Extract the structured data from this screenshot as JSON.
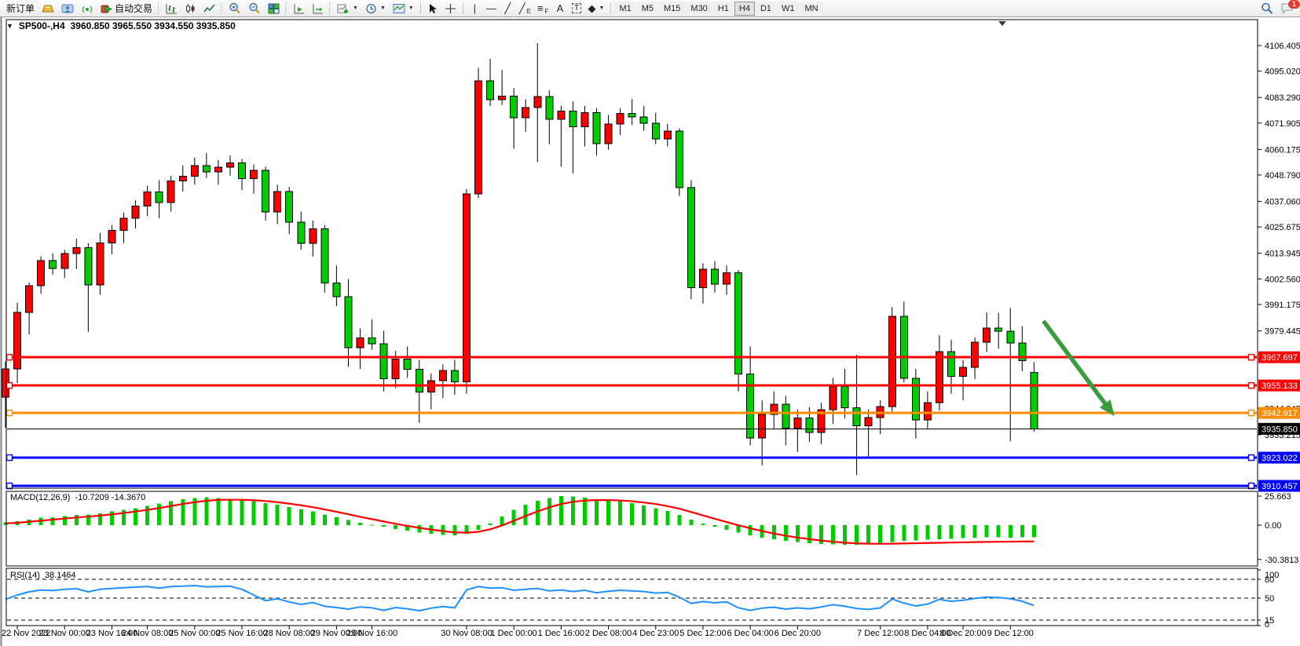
{
  "toolbar": {
    "new_order_label": "新订单",
    "autotrading_label": "自动交易",
    "chat_badge": "1",
    "tools": [
      {
        "name": "vertical-line-tool",
        "glyph": "|",
        "sub": ""
      },
      {
        "name": "horizontal-line-tool",
        "glyph": "—",
        "sub": ""
      },
      {
        "name": "trendline-tool",
        "glyph": "╱",
        "sub": ""
      },
      {
        "name": "equidistant-channel-tool",
        "glyph": "╱",
        "sub": "E"
      },
      {
        "name": "fibonacci-tool",
        "glyph": "≡",
        "sub": "F"
      },
      {
        "name": "text-tool",
        "glyph": "A",
        "sub": ""
      },
      {
        "name": "text-label-tool",
        "glyph": "T",
        "sub": "",
        "boxed": true
      },
      {
        "name": "shapes-tool",
        "glyph": "◆",
        "sub": "",
        "dropdown": true
      }
    ],
    "timeframes": [
      "M1",
      "M5",
      "M15",
      "M30",
      "H1",
      "H4",
      "D1",
      "W1",
      "MN"
    ],
    "active_timeframe": "H4"
  },
  "chart": {
    "title_marker": "▼",
    "title": "SP500-,H4",
    "ohlc_text": "3960.850 3965.550 3934.550 3935.850"
  },
  "chart_data": [
    {
      "type": "candlestick",
      "symbol": "SP500-",
      "timeframe": "H4",
      "bull_color": "#FF0000",
      "bear_color": "#00CC00",
      "ohlc": [
        [
          3950.0,
          3966.0,
          3936.3,
          3962.5
        ],
        [
          3962.5,
          3992.0,
          3956.2,
          3987.6
        ],
        [
          3987.6,
          4001.0,
          3977.9,
          3999.5
        ],
        [
          3999.5,
          4012.5,
          3996.0,
          4010.7
        ],
        [
          4010.7,
          4013.9,
          4004.5,
          4007.2
        ],
        [
          4007.2,
          4015.5,
          4003.0,
          4013.9
        ],
        [
          4013.9,
          4020.5,
          4007.0,
          4016.5
        ],
        [
          4016.5,
          4018.5,
          3979.0,
          3999.8
        ],
        [
          3999.8,
          4023.0,
          3995.5,
          4018.6
        ],
        [
          4018.6,
          4026.5,
          4013.5,
          4024.2
        ],
        [
          4024.2,
          4032.0,
          4018.5,
          4029.5
        ],
        [
          4029.5,
          4037.5,
          4025.0,
          4035.0
        ],
        [
          4035.0,
          4044.0,
          4030.5,
          4041.2
        ],
        [
          4041.2,
          4046.5,
          4029.5,
          4036.5
        ],
        [
          4036.5,
          4048.5,
          4032.5,
          4046.2
        ],
        [
          4046.2,
          4053.0,
          4041.5,
          4048.3
        ],
        [
          4048.3,
          4056.5,
          4044.5,
          4053.0
        ],
        [
          4053.0,
          4058.5,
          4047.5,
          4050.2
        ],
        [
          4050.2,
          4055.5,
          4044.5,
          4052.3
        ],
        [
          4052.3,
          4057.5,
          4048.5,
          4054.2
        ],
        [
          4054.2,
          4056.0,
          4042.0,
          4047.2
        ],
        [
          4047.2,
          4053.5,
          4040.5,
          4050.8
        ],
        [
          4050.8,
          4052.5,
          4028.5,
          4032.3
        ],
        [
          4032.3,
          4044.5,
          4027.0,
          4041.5
        ],
        [
          4041.5,
          4043.5,
          4022.5,
          4027.8
        ],
        [
          4027.8,
          4032.5,
          4015.5,
          4018.3
        ],
        [
          4018.3,
          4028.5,
          4012.5,
          4024.8
        ],
        [
          4024.8,
          4026.5,
          3996.5,
          4000.8
        ],
        [
          4000.8,
          4008.5,
          3990.5,
          3994.6
        ],
        [
          3994.6,
          4002.5,
          3963.5,
          3971.9
        ],
        [
          3971.9,
          3980.5,
          3962.5,
          3976.3
        ],
        [
          3976.3,
          3984.5,
          3971.0,
          3973.6
        ],
        [
          3973.6,
          3979.5,
          3952.5,
          3958.2
        ],
        [
          3958.2,
          3970.5,
          3954.0,
          3966.8
        ],
        [
          3966.8,
          3972.5,
          3958.5,
          3962.3
        ],
        [
          3962.3,
          3966.5,
          3938.5,
          3952.2
        ],
        [
          3952.2,
          3960.5,
          3944.5,
          3957.3
        ],
        [
          3957.3,
          3964.5,
          3949.5,
          3961.8
        ],
        [
          3961.8,
          3966.5,
          3951.0,
          3956.7
        ],
        [
          3956.7,
          4042.5,
          3951.5,
          4040.4
        ],
        [
          4040.4,
          4096.5,
          4038.5,
          4090.7
        ],
        [
          4090.7,
          4100.5,
          4079.5,
          4082.3
        ],
        [
          4082.3,
          4095.5,
          4080.0,
          4083.8
        ],
        [
          4083.8,
          4087.5,
          4060.5,
          4074.2
        ],
        [
          4074.2,
          4082.5,
          4068.0,
          4078.8
        ],
        [
          4078.8,
          4107.5,
          4054.5,
          4083.7
        ],
        [
          4083.7,
          4086.5,
          4062.5,
          4073.6
        ],
        [
          4073.6,
          4079.5,
          4052.5,
          4077.2
        ],
        [
          4077.2,
          4081.5,
          4049.5,
          4070.3
        ],
        [
          4070.3,
          4079.5,
          4061.5,
          4076.6
        ],
        [
          4076.6,
          4078.5,
          4057.5,
          4062.8
        ],
        [
          4062.8,
          4075.5,
          4060.0,
          4071.4
        ],
        [
          4071.4,
          4078.5,
          4066.5,
          4076.2
        ],
        [
          4076.2,
          4082.5,
          4071.0,
          4074.6
        ],
        [
          4074.6,
          4079.5,
          4068.5,
          4071.8
        ],
        [
          4071.8,
          4076.5,
          4062.5,
          4064.8
        ],
        [
          4064.8,
          4071.5,
          4061.5,
          4068.3
        ],
        [
          4068.3,
          4069.5,
          4039.5,
          4043.2
        ],
        [
          4043.2,
          4046.5,
          3993.5,
          3998.7
        ],
        [
          3998.7,
          4009.5,
          3991.5,
          4006.8
        ],
        [
          4006.8,
          4010.5,
          3996.5,
          4000.3
        ],
        [
          4000.3,
          4008.5,
          3995.5,
          4005.2
        ],
        [
          4005.2,
          4006.5,
          3952.5,
          3960.3
        ],
        [
          3960.3,
          3972.5,
          3928.5,
          3931.8
        ],
        [
          3931.8,
          3948.5,
          3919.6,
          3942.3
        ],
        [
          3942.3,
          3952.5,
          3935.5,
          3946.8
        ],
        [
          3946.8,
          3950.5,
          3928.5,
          3936.2
        ],
        [
          3936.2,
          3944.5,
          3925.5,
          3940.6
        ],
        [
          3940.6,
          3945.5,
          3930.0,
          3934.2
        ],
        [
          3934.2,
          3947.5,
          3929.0,
          3944.3
        ],
        [
          3944.3,
          3958.5,
          3938.0,
          3954.7
        ],
        [
          3954.7,
          3962.5,
          3940.5,
          3945.2
        ],
        [
          3945.2,
          3968.8,
          3915.3,
          3937.2
        ],
        [
          3937.2,
          3944.5,
          3922.5,
          3940.8
        ],
        [
          3940.8,
          3948.5,
          3933.5,
          3945.7
        ],
        [
          3945.7,
          3990.0,
          3943.5,
          3985.9
        ],
        [
          3985.9,
          3992.5,
          3956.5,
          3958.3
        ],
        [
          3958.3,
          3962.5,
          3931.5,
          3939.8
        ],
        [
          3939.8,
          3952.5,
          3935.5,
          3947.5
        ],
        [
          3947.5,
          3977.5,
          3944.0,
          3970.2
        ],
        [
          3970.2,
          3975.5,
          3951.5,
          3959.1
        ],
        [
          3959.1,
          3966.5,
          3948.5,
          3963.2
        ],
        [
          3963.2,
          3976.5,
          3958.0,
          3974.4
        ],
        [
          3974.4,
          3987.7,
          3970.0,
          3980.7
        ],
        [
          3980.7,
          3987.5,
          3971.5,
          3979.2
        ],
        [
          3979.2,
          3989.7,
          3930.3,
          3974.1
        ],
        [
          3974.1,
          3981.5,
          3961.5,
          3966.2
        ],
        [
          3960.85,
          3965.55,
          3934.55,
          3935.85
        ]
      ],
      "y_ticks": [
        {
          "label": "4106.405",
          "value": 4106.405
        },
        {
          "label": "4095.020",
          "value": 4095.02
        },
        {
          "label": "4083.290",
          "value": 4083.29
        },
        {
          "label": "4071.905",
          "value": 4071.905
        },
        {
          "label": "4060.175",
          "value": 4060.175
        },
        {
          "label": "4048.790",
          "value": 4048.79
        },
        {
          "label": "4037.060",
          "value": 4037.06
        },
        {
          "label": "4025.675",
          "value": 4025.675
        },
        {
          "label": "4013.945",
          "value": 4013.945
        },
        {
          "label": "4002.560",
          "value": 4002.56
        },
        {
          "label": "3991.175",
          "value": 3991.175
        },
        {
          "label": "3979.445",
          "value": 3979.445
        },
        {
          "label": "3944.945",
          "value": 3944.945
        },
        {
          "label": "3933.215",
          "value": 3933.215
        }
      ],
      "hlines": [
        {
          "label": "3967.697",
          "value": 3967.697,
          "color": "#FF0000",
          "width": 3
        },
        {
          "label": "3955.133",
          "value": 3955.133,
          "color": "#FF0000",
          "width": 3
        },
        {
          "label": "3942.917",
          "value": 3942.917,
          "color": "#FF8C00",
          "width": 3
        },
        {
          "label": "3923.022",
          "value": 3923.022,
          "color": "#0000FF",
          "width": 3
        },
        {
          "label": "3910.457",
          "value": 3910.457,
          "color": "#0000FF",
          "width": 3
        }
      ],
      "bid_line": {
        "label": "3935.850",
        "value": 3935.85,
        "color": "#000000"
      },
      "time_labels": [
        {
          "label": "22 Nov 2022",
          "index": 1
        },
        {
          "label": "23 Nov 00:00",
          "index": 5
        },
        {
          "label": "23 Nov 16:00",
          "index": 9
        },
        {
          "label": "24 Nov 08:00",
          "index": 12
        },
        {
          "label": "25 Nov 00:00",
          "index": 16
        },
        {
          "label": "25 Nov 16:00",
          "index": 20
        },
        {
          "label": "28 Nov 08:00",
          "index": 24
        },
        {
          "label": "29 Nov 00:00",
          "index": 28
        },
        {
          "label": "29 Nov 16:00",
          "index": 31
        },
        {
          "label": "30 Nov 08:00",
          "index": 39
        },
        {
          "label": "1 Dec 00:00",
          "index": 43
        },
        {
          "label": "1 Dec 16:00",
          "index": 47
        },
        {
          "label": "2 Dec 08:00",
          "index": 51
        },
        {
          "label": "4 Dec 23:00",
          "index": 55
        },
        {
          "label": "5 Dec 12:00",
          "index": 59
        },
        {
          "label": "6 Dec 04:00",
          "index": 63
        },
        {
          "label": "6 Dec 20:00",
          "index": 67
        },
        {
          "label": "7 Dec 12:00",
          "index": 74
        },
        {
          "label": "8 Dec 04:00",
          "index": 78
        },
        {
          "label": "8 Dec 20:00",
          "index": 81
        },
        {
          "label": "9 Dec 12:00",
          "index": 85
        }
      ],
      "annotation_arrow": {
        "from_index": 87.8,
        "from_price": 3983.8,
        "to_index": 93.8,
        "to_price": 3941.5,
        "color": "#3C9C3C"
      }
    },
    {
      "type": "macd",
      "label": "MACD(12,26,9)",
      "current_text": "-10.7209 -14.3670",
      "histogram_color": "#00CC00",
      "signal_color": "#FF0000",
      "y_ticks": [
        {
          "label": "25.663",
          "value": 25.663
        },
        {
          "label": "0.00",
          "value": 0
        },
        {
          "label": "-30.3813",
          "value": -30.3813
        }
      ],
      "histogram": [
        2.5,
        3.5,
        5,
        6.5,
        7,
        8,
        9,
        9.5,
        10.5,
        12,
        13.5,
        15,
        17,
        19,
        21,
        23,
        24,
        24.5,
        24,
        23,
        22,
        21,
        19.5,
        18,
        16,
        14,
        12,
        9.5,
        7,
        4.5,
        2,
        0.5,
        -1.5,
        -3.5,
        -5,
        -6.5,
        -7.5,
        -8.5,
        -9,
        -7.5,
        -4,
        1.5,
        7.5,
        13.5,
        18,
        21.5,
        24,
        25.66,
        25.2,
        24.2,
        23,
        22,
        21,
        19.5,
        17.5,
        15,
        12.5,
        9,
        5,
        1.5,
        -1.5,
        -4,
        -6.5,
        -9,
        -11,
        -12.5,
        -13.8,
        -15,
        -15.8,
        -16.5,
        -17,
        -17.3,
        -17.5,
        -17,
        -16,
        -14.8,
        -14,
        -13.5,
        -13,
        -12.5,
        -12,
        -11.6,
        -11.2,
        -10.9,
        -10.8,
        -11,
        -10.9,
        -10.72
      ],
      "signal": [
        1.5,
        2.1,
        3.0,
        3.9,
        4.8,
        5.8,
        6.7,
        7.6,
        8.4,
        9.5,
        10.7,
        12.0,
        13.5,
        15.1,
        16.9,
        18.7,
        20.3,
        21.5,
        22.3,
        22.5,
        22.4,
        22.0,
        21.3,
        20.3,
        19.0,
        17.5,
        15.8,
        13.9,
        11.8,
        9.6,
        7.3,
        5.3,
        3.2,
        1.2,
        -0.7,
        -2.4,
        -3.9,
        -5.3,
        -6.4,
        -6.7,
        -5.9,
        -3.7,
        -0.3,
        3.8,
        8.1,
        12.1,
        15.7,
        18.7,
        20.6,
        21.7,
        22.1,
        22.1,
        21.8,
        21.1,
        20.0,
        18.7,
        16.8,
        14.5,
        11.6,
        8.6,
        5.6,
        2.7,
        -0.1,
        -2.8,
        -5.2,
        -7.4,
        -9.3,
        -11.0,
        -12.4,
        -13.6,
        -14.7,
        -15.5,
        -16.1,
        -16.4,
        -16.5,
        -16.4,
        -16.2,
        -16.0,
        -15.8,
        -15.6,
        -15.4,
        -15.2,
        -15.0,
        -14.85,
        -14.7,
        -14.6,
        -14.5,
        -14.37
      ]
    },
    {
      "type": "rsi",
      "label": "RSI(14)",
      "current_text": "38.1464",
      "line_color": "#1E90FF",
      "levels": [
        80,
        50,
        15
      ],
      "y_tick_labels": [
        {
          "label": "100",
          "value": 100
        },
        {
          "label": "80",
          "value": 80
        },
        {
          "label": "50",
          "value": 50
        },
        {
          "label": "15",
          "value": 15
        },
        {
          "label": "0",
          "value": 0
        }
      ],
      "values": [
        48,
        55,
        60,
        63,
        62,
        64,
        65,
        60,
        64,
        65.5,
        66.5,
        67.5,
        68.5,
        66,
        68.5,
        69,
        70,
        68,
        68.5,
        69,
        64,
        55,
        46,
        49,
        44,
        40,
        43,
        37,
        35,
        32.5,
        36,
        34.5,
        30.5,
        35,
        33,
        30,
        34,
        36.5,
        34.5,
        63,
        68.5,
        66,
        66.5,
        62.5,
        64,
        65.5,
        61.5,
        63,
        60.5,
        62.5,
        58.5,
        61,
        62.5,
        61.5,
        60.5,
        58,
        59,
        51.5,
        41.5,
        44.5,
        42.5,
        44,
        34.5,
        30.5,
        34,
        35.5,
        32.5,
        34.5,
        33,
        36,
        39.5,
        37,
        33.5,
        32,
        34.5,
        48.5,
        42,
        37.5,
        40.5,
        48,
        45,
        46.5,
        49.5,
        51.5,
        51,
        49,
        45,
        38.15
      ]
    }
  ]
}
